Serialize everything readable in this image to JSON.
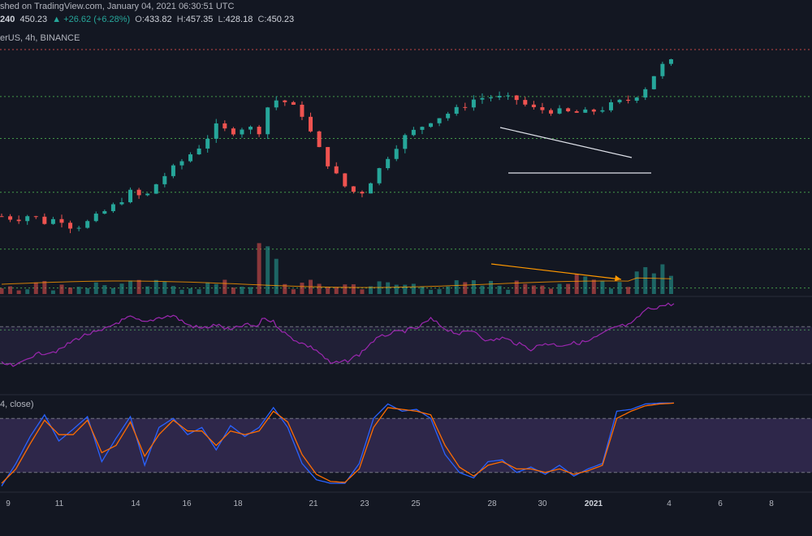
{
  "header": {
    "published": "shed on TradingView.com, January 04, 2021 06:30:51 UTC",
    "price_cut": "240",
    "last": "450.23",
    "change": "+26.62 (+6.28%)",
    "o_label": "O:",
    "o_value": "433.82",
    "h_label": "H:",
    "h_value": "457.35",
    "l_label": "L:",
    "l_value": "428.18",
    "c_label": "C:",
    "c_value": "450.23",
    "symbol_line": "erUS, 4h, BINANCE"
  },
  "stoch_title": "4, close)",
  "colors": {
    "bg": "#131722",
    "up": "#26a69a",
    "down": "#ef5350",
    "resistance": "#4caf50",
    "top_line": "#ef5350",
    "rsi_line": "#9c27b0",
    "stoch_k": "#2962ff",
    "stoch_d": "#ff6d00",
    "band_fill": "#7e57c2",
    "volume_ma": "#ff9800"
  },
  "chart_data": {
    "type": "candlestick",
    "x_ticks": [
      "9",
      "11",
      "14",
      "16",
      "18",
      "21",
      "23",
      "25",
      "28",
      "30",
      "2021",
      "4",
      "6",
      "8"
    ],
    "x_ticks_bold": [
      "2021"
    ],
    "price_path": [
      [
        0,
        56
      ],
      [
        10,
        55
      ],
      [
        20,
        56.5
      ],
      [
        30,
        54
      ],
      [
        40,
        55.5
      ],
      [
        50,
        52
      ],
      [
        60,
        54
      ],
      [
        70,
        57
      ],
      [
        80,
        60
      ],
      [
        90,
        64
      ],
      [
        100,
        62
      ],
      [
        110,
        68
      ],
      [
        120,
        72
      ],
      [
        130,
        76
      ],
      [
        140,
        80
      ],
      [
        150,
        86
      ],
      [
        160,
        84
      ],
      [
        170,
        86
      ],
      [
        180,
        84.5
      ],
      [
        182,
        90
      ],
      [
        190,
        95
      ],
      [
        200,
        94
      ],
      [
        210,
        90
      ],
      [
        220,
        80
      ],
      [
        230,
        72
      ],
      [
        240,
        66
      ],
      [
        250,
        63
      ],
      [
        260,
        69
      ],
      [
        270,
        76
      ],
      [
        280,
        82
      ],
      [
        290,
        85
      ],
      [
        300,
        88
      ],
      [
        310,
        90
      ],
      [
        320,
        92
      ],
      [
        330,
        95
      ],
      [
        340,
        96
      ],
      [
        350,
        95.5
      ],
      [
        360,
        95
      ],
      [
        370,
        92
      ],
      [
        380,
        91.5
      ],
      [
        390,
        91
      ],
      [
        400,
        90.5
      ],
      [
        410,
        90.7
      ],
      [
        420,
        92
      ],
      [
        430,
        94
      ],
      [
        440,
        95
      ],
      [
        450,
        99
      ],
      [
        460,
        106
      ],
      [
        470,
        108
      ]
    ],
    "rsi_path": [
      [
        0,
        30
      ],
      [
        10,
        27
      ],
      [
        20,
        38
      ],
      [
        30,
        42
      ],
      [
        40,
        44
      ],
      [
        50,
        55
      ],
      [
        60,
        62
      ],
      [
        70,
        65
      ],
      [
        80,
        74
      ],
      [
        90,
        80
      ],
      [
        100,
        74
      ],
      [
        110,
        80
      ],
      [
        120,
        82
      ],
      [
        130,
        72
      ],
      [
        140,
        68
      ],
      [
        150,
        72
      ],
      [
        160,
        66
      ],
      [
        170,
        72
      ],
      [
        180,
        70
      ],
      [
        182,
        80
      ],
      [
        190,
        75
      ],
      [
        200,
        60
      ],
      [
        210,
        52
      ],
      [
        220,
        45
      ],
      [
        230,
        30
      ],
      [
        240,
        32
      ],
      [
        250,
        40
      ],
      [
        260,
        55
      ],
      [
        270,
        62
      ],
      [
        280,
        65
      ],
      [
        290,
        68
      ],
      [
        300,
        78
      ],
      [
        310,
        68
      ],
      [
        320,
        62
      ],
      [
        330,
        66
      ],
      [
        340,
        54
      ],
      [
        350,
        58
      ],
      [
        360,
        52
      ],
      [
        370,
        46
      ],
      [
        380,
        52
      ],
      [
        390,
        50
      ],
      [
        400,
        52
      ],
      [
        410,
        54
      ],
      [
        420,
        62
      ],
      [
        430,
        70
      ],
      [
        440,
        72
      ],
      [
        450,
        88
      ],
      [
        460,
        92
      ],
      [
        470,
        95
      ]
    ],
    "stoch_k_path": [
      [
        0,
        5
      ],
      [
        10,
        30
      ],
      [
        20,
        60
      ],
      [
        30,
        84
      ],
      [
        40,
        55
      ],
      [
        50,
        68
      ],
      [
        60,
        82
      ],
      [
        70,
        32
      ],
      [
        80,
        58
      ],
      [
        90,
        82
      ],
      [
        100,
        28
      ],
      [
        110,
        70
      ],
      [
        120,
        80
      ],
      [
        130,
        62
      ],
      [
        140,
        70
      ],
      [
        150,
        45
      ],
      [
        160,
        72
      ],
      [
        170,
        60
      ],
      [
        180,
        70
      ],
      [
        190,
        92
      ],
      [
        200,
        70
      ],
      [
        210,
        30
      ],
      [
        220,
        12
      ],
      [
        230,
        8
      ],
      [
        240,
        8
      ],
      [
        250,
        30
      ],
      [
        260,
        80
      ],
      [
        270,
        96
      ],
      [
        280,
        88
      ],
      [
        290,
        90
      ],
      [
        300,
        80
      ],
      [
        310,
        40
      ],
      [
        320,
        20
      ],
      [
        330,
        14
      ],
      [
        340,
        32
      ],
      [
        350,
        34
      ],
      [
        360,
        20
      ],
      [
        370,
        26
      ],
      [
        380,
        18
      ],
      [
        390,
        28
      ],
      [
        400,
        16
      ],
      [
        410,
        24
      ],
      [
        420,
        30
      ],
      [
        430,
        88
      ],
      [
        440,
        90
      ],
      [
        450,
        96
      ],
      [
        460,
        97
      ],
      [
        470,
        97
      ]
    ],
    "stoch_d_path": [
      [
        0,
        8
      ],
      [
        10,
        24
      ],
      [
        20,
        52
      ],
      [
        30,
        78
      ],
      [
        40,
        62
      ],
      [
        50,
        62
      ],
      [
        60,
        78
      ],
      [
        70,
        42
      ],
      [
        80,
        50
      ],
      [
        90,
        76
      ],
      [
        100,
        38
      ],
      [
        110,
        62
      ],
      [
        120,
        78
      ],
      [
        130,
        66
      ],
      [
        140,
        66
      ],
      [
        150,
        50
      ],
      [
        160,
        66
      ],
      [
        170,
        62
      ],
      [
        180,
        66
      ],
      [
        190,
        88
      ],
      [
        200,
        76
      ],
      [
        210,
        40
      ],
      [
        220,
        18
      ],
      [
        230,
        10
      ],
      [
        240,
        9
      ],
      [
        250,
        24
      ],
      [
        260,
        70
      ],
      [
        270,
        92
      ],
      [
        280,
        90
      ],
      [
        290,
        88
      ],
      [
        300,
        84
      ],
      [
        310,
        50
      ],
      [
        320,
        26
      ],
      [
        330,
        16
      ],
      [
        340,
        28
      ],
      [
        350,
        32
      ],
      [
        360,
        24
      ],
      [
        370,
        24
      ],
      [
        380,
        20
      ],
      [
        390,
        24
      ],
      [
        400,
        18
      ],
      [
        410,
        22
      ],
      [
        420,
        28
      ],
      [
        430,
        80
      ],
      [
        440,
        88
      ],
      [
        450,
        94
      ],
      [
        460,
        96
      ],
      [
        470,
        97
      ]
    ],
    "support_levels": [
      96,
      82,
      64,
      45,
      32,
      18
    ],
    "top_level": 112,
    "rsi_band": [
      30,
      70
    ],
    "stoch_band": [
      20,
      80
    ]
  }
}
